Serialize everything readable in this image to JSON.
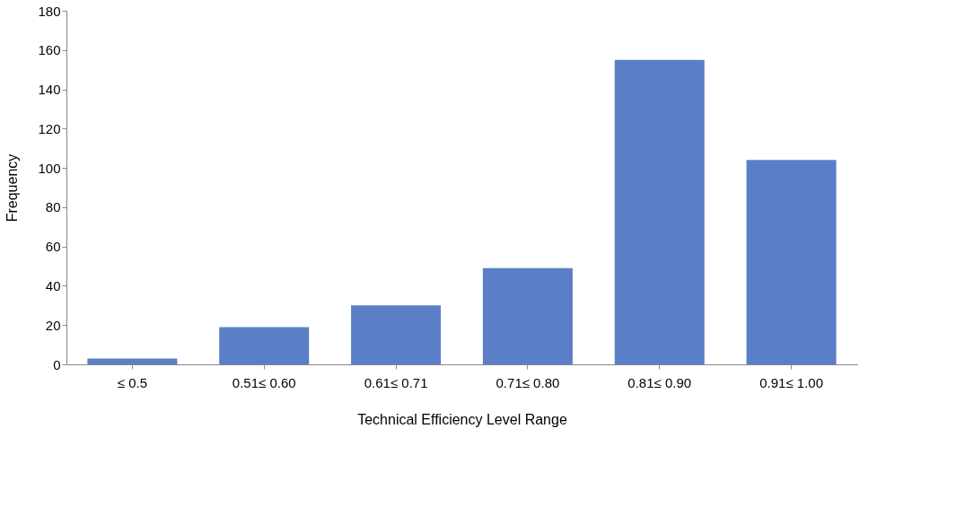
{
  "chart_data": {
    "type": "bar",
    "xlabel": "Technical Efficiency Level  Range",
    "ylabel": "Frequency",
    "categories": [
      "≤ 0.5",
      "0.51≤ 0.60",
      "0.61≤ 0.71",
      "0.71≤ 0.80",
      "0.81≤ 0.90",
      "0.91≤ 1.00"
    ],
    "values": [
      3,
      19,
      30,
      49,
      155,
      104
    ],
    "color": "#5a7fc7",
    "ylim": [
      0,
      180
    ],
    "yticks": [
      0,
      20,
      40,
      60,
      80,
      100,
      120,
      140,
      160,
      180
    ],
    "grid": false
  }
}
